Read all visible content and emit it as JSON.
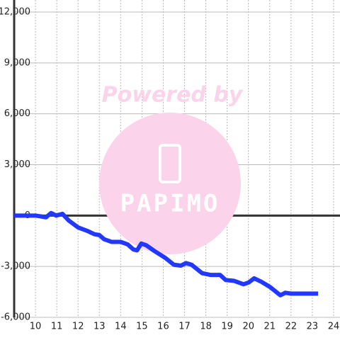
{
  "chart_data": {
    "type": "line",
    "annotations": [
      "Powered by",
      "PAPIMO"
    ],
    "x": [
      9,
      10,
      10.5,
      10.73,
      10.97,
      11.27,
      11.57,
      12,
      12.43,
      12.77,
      13,
      13.23,
      13.57,
      14,
      14.33,
      14.6,
      14.77,
      14.97,
      15.2,
      15.6,
      16.1,
      16.5,
      16.83,
      17.07,
      17.33,
      17.83,
      18.23,
      18.67,
      18.93,
      19.33,
      19.77,
      20,
      20.27,
      20.6,
      21,
      21.5,
      21.73,
      22,
      23.27
    ],
    "series": [
      {
        "color": "#2238ff",
        "values": [
          0,
          0,
          -100,
          150,
          0,
          100,
          -300,
          -700,
          -900,
          -1100,
          -1150,
          -1400,
          -1550,
          -1550,
          -1700,
          -2000,
          -2050,
          -1650,
          -1750,
          -2100,
          -2500,
          -2900,
          -2950,
          -2800,
          -2900,
          -3400,
          -3500,
          -3500,
          -3800,
          -3850,
          -4050,
          -3950,
          -3700,
          -3900,
          -4200,
          -4700,
          -4550,
          -4600,
          -4600
        ]
      }
    ],
    "xlim": [
      9,
      24.3
    ],
    "xticks": [
      10,
      11,
      12,
      13,
      14,
      15,
      16,
      17,
      18,
      19,
      20,
      21,
      22,
      23,
      24
    ],
    "ylim": [
      -6000,
      12000
    ],
    "yticks": [
      {
        "value": -6000,
        "label": "-6,000"
      },
      {
        "value": -3000,
        "label": "-3,000"
      },
      0,
      {
        "value": 3000,
        "label": "3,000"
      },
      {
        "value": 6000,
        "label": "6,000"
      },
      {
        "value": 9000,
        "label": "9,000"
      },
      {
        "value": 12000,
        "label": "12,000"
      }
    ],
    "grid": true
  }
}
